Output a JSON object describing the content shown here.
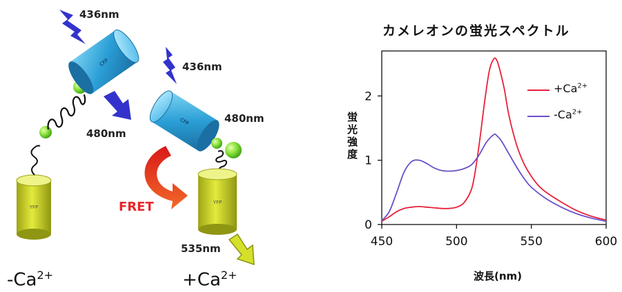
{
  "diagram": {
    "wavelength_436_a": "436nm",
    "wavelength_436_b": "436nm",
    "wavelength_480_a": "480nm",
    "wavelength_480_b": "480nm",
    "wavelength_535": "535nm",
    "fret_label": "FRET",
    "cfp_label": "CFP",
    "yfp_label": "YFP",
    "condition_minus": "-Ca",
    "condition_plus": "+Ca",
    "charge_superscript": "2+",
    "colors": {
      "cfp": "#2a9fd6",
      "yfp": "#c9d12a",
      "arrow_blue": "#3333cc",
      "fret_red": "#e8262a",
      "arrow_yellow": "#d4e02a",
      "sphere": "#88e23a"
    }
  },
  "chart": {
    "title": "カメレオンの蛍光スペクトル",
    "ylabel": "蛍光強度",
    "xlabel": "波長(nm)",
    "legend_plus": "+Ca",
    "legend_minus": "-Ca",
    "legend_sup": "2+"
  },
  "chart_data": {
    "type": "line",
    "title": "カメレオンの蛍光スペクトル",
    "xlabel": "波長(nm)",
    "ylabel": "蛍光強度",
    "xlim": [
      450,
      600
    ],
    "ylim": [
      0,
      2.7
    ],
    "x_ticks": [
      450,
      500,
      550,
      600
    ],
    "y_ticks": [
      0,
      1,
      2
    ],
    "legend_position": "top-right",
    "series": [
      {
        "name": "+Ca2+",
        "color": "#e8203a",
        "x": [
          450,
          455,
          460,
          465,
          470,
          475,
          480,
          485,
          490,
          495,
          500,
          505,
          510,
          513,
          516,
          519,
          522,
          525,
          527,
          529,
          532,
          535,
          540,
          545,
          550,
          555,
          560,
          570,
          580,
          590,
          600
        ],
        "y": [
          0.05,
          0.12,
          0.2,
          0.25,
          0.27,
          0.28,
          0.27,
          0.26,
          0.25,
          0.25,
          0.27,
          0.34,
          0.55,
          0.9,
          1.4,
          1.95,
          2.4,
          2.58,
          2.55,
          2.4,
          2.1,
          1.7,
          1.25,
          0.95,
          0.75,
          0.6,
          0.5,
          0.35,
          0.22,
          0.13,
          0.07
        ]
      },
      {
        "name": "-Ca2+",
        "color": "#6a4fc8",
        "x": [
          450,
          455,
          460,
          465,
          470,
          475,
          480,
          485,
          490,
          495,
          500,
          505,
          510,
          515,
          520,
          525,
          527,
          530,
          535,
          540,
          545,
          550,
          560,
          570,
          580,
          590,
          600
        ],
        "y": [
          0.06,
          0.2,
          0.5,
          0.82,
          0.98,
          1.0,
          0.95,
          0.88,
          0.84,
          0.83,
          0.84,
          0.87,
          0.93,
          1.08,
          1.28,
          1.4,
          1.38,
          1.3,
          1.1,
          0.9,
          0.72,
          0.58,
          0.4,
          0.27,
          0.17,
          0.1,
          0.05
        ]
      }
    ]
  }
}
